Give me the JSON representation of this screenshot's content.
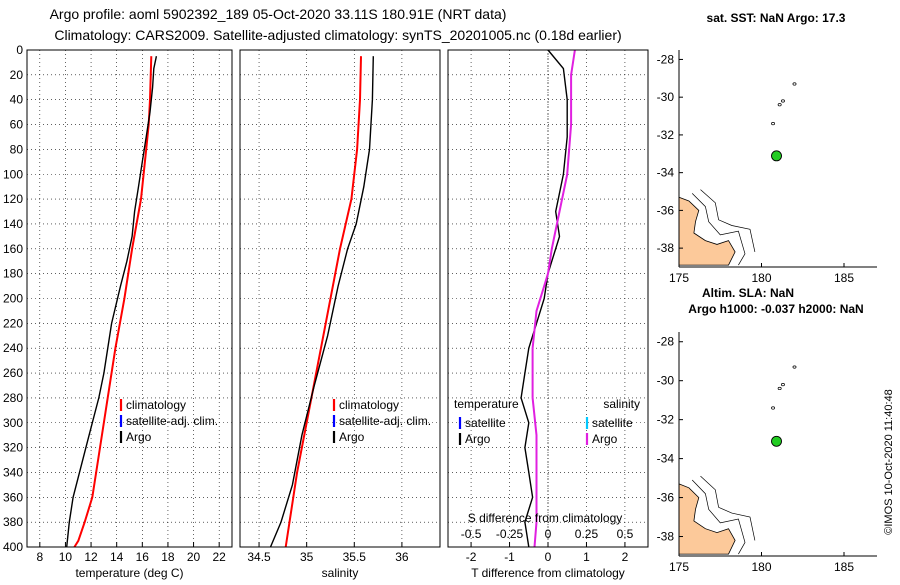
{
  "header": {
    "title_line1": "Argo profile: aoml 5902392_189 05-Oct-2020 33.11S 180.91E (NRT data)",
    "title_line2": "Climatology: CARS2009. Satellite-adjusted climatology: synTS_20201005.nc (0.18d earlier)"
  },
  "colors": {
    "climatology": "#ff0000",
    "satellite": "#0000ff",
    "argo": "#000000",
    "salinity_diff": "#e020e0",
    "salinity_sat": "#00c8ff",
    "land": "#fcc99a"
  },
  "chart_data": [
    {
      "type": "line",
      "id": "temperature",
      "xlabel": "temperature (deg C)",
      "ylabel": "",
      "xlim": [
        7,
        23
      ],
      "ylim": [
        400,
        0
      ],
      "xticks": [
        8,
        10,
        12,
        14,
        16,
        18,
        20,
        22
      ],
      "xtick_labels": [
        "8",
        "10",
        "12",
        "14",
        "16",
        "18",
        "20",
        "22"
      ],
      "yticks": [
        0,
        20,
        40,
        60,
        80,
        100,
        120,
        140,
        160,
        180,
        200,
        220,
        240,
        260,
        280,
        300,
        320,
        340,
        360,
        380,
        400
      ],
      "ytick_labels": [
        "0",
        "20",
        "40",
        "60",
        "80",
        "100",
        "120",
        "140",
        "160",
        "180",
        "200",
        "220",
        "240",
        "260",
        "280",
        "300",
        "320",
        "340",
        "360",
        "380",
        "400"
      ],
      "grid": true,
      "series": [
        {
          "name": "climatology",
          "color": "#ff0000",
          "x": [
            16.7,
            16.6,
            16.5,
            16.3,
            15.9,
            15.2,
            14.6,
            13.9,
            13.3,
            12.7,
            12.1,
            11.5,
            11.0,
            10.7
          ],
          "y": [
            5,
            40,
            60,
            80,
            120,
            160,
            200,
            240,
            280,
            320,
            360,
            380,
            395,
            400
          ]
        },
        {
          "name": "Argo",
          "color": "#000000",
          "x": [
            17.1,
            16.9,
            16.8,
            16.6,
            16.3,
            16.0,
            15.7,
            15.4,
            15.2,
            14.8,
            14.3,
            13.6,
            13.0,
            12.6,
            12.1,
            11.6,
            11.1,
            10.6,
            10.3,
            10.1
          ],
          "y": [
            5,
            15,
            30,
            50,
            70,
            90,
            110,
            130,
            150,
            170,
            190,
            220,
            260,
            280,
            300,
            320,
            340,
            360,
            380,
            400
          ]
        }
      ],
      "legend": {
        "position": "right-middle",
        "entries": [
          "climatology",
          "satellite-adj. clim.",
          "Argo"
        ]
      }
    },
    {
      "type": "line",
      "id": "salinity",
      "xlabel": "salinity",
      "xlim": [
        34.3,
        36.4
      ],
      "ylim": [
        400,
        0
      ],
      "xticks": [
        34.5,
        35,
        35.5,
        36
      ],
      "xtick_labels": [
        "34.5",
        "35",
        "35.5",
        "36"
      ],
      "grid": true,
      "series": [
        {
          "name": "climatology",
          "color": "#ff0000",
          "x": [
            35.57,
            35.56,
            35.53,
            35.47,
            35.35,
            35.2,
            35.05,
            34.9,
            34.78
          ],
          "y": [
            5,
            40,
            80,
            120,
            160,
            220,
            280,
            340,
            400
          ]
        },
        {
          "name": "Argo",
          "color": "#000000",
          "x": [
            35.7,
            35.69,
            35.66,
            35.6,
            35.52,
            35.43,
            35.33,
            35.22,
            35.08,
            34.95,
            34.85,
            34.73,
            34.62
          ],
          "y": [
            5,
            40,
            80,
            110,
            140,
            160,
            190,
            230,
            270,
            310,
            350,
            380,
            400
          ]
        }
      ],
      "legend": {
        "position": "right-middle",
        "entries": [
          "climatology",
          "satellite-adj. clim.",
          "Argo"
        ]
      }
    },
    {
      "type": "line",
      "id": "difference",
      "xlabel": "T difference from climatology",
      "xlabel_top": "S difference from climatology",
      "xlim": [
        -2.6,
        2.6
      ],
      "ylim": [
        400,
        0
      ],
      "xticks": [
        -2,
        -1,
        0,
        1,
        2
      ],
      "xtick_labels": [
        "-2",
        "-1",
        "0",
        "1",
        "2"
      ],
      "s_xticks": [
        -0.5,
        -0.25,
        0,
        0.25,
        0.5
      ],
      "s_xtick_labels": [
        "-0.5",
        "-0.25",
        "0",
        "0.25",
        "0.5"
      ],
      "grid": true,
      "series": [
        {
          "name": "T Argo",
          "color": "#000000",
          "x": [
            0.0,
            0.4,
            0.5,
            0.5,
            0.4,
            0.2,
            0.3,
            0.1,
            0.0,
            -0.1,
            -0.3,
            -0.5,
            -0.6,
            -0.7,
            -0.5,
            -0.6,
            -0.5,
            -0.4,
            -0.6,
            -0.5
          ],
          "y": [
            0,
            15,
            40,
            70,
            100,
            130,
            150,
            170,
            180,
            200,
            220,
            240,
            260,
            280,
            300,
            320,
            340,
            360,
            380,
            400
          ]
        },
        {
          "name": "S Argo",
          "color": "#e020e0",
          "x": [
            0.7,
            0.6,
            0.6,
            0.5,
            0.3,
            0.1,
            0.0,
            -0.1,
            -0.3,
            -0.4,
            -0.4,
            -0.3,
            -0.3,
            -0.3,
            -0.35
          ],
          "y": [
            0,
            20,
            60,
            100,
            130,
            160,
            180,
            190,
            210,
            240,
            280,
            310,
            340,
            380,
            400
          ]
        }
      ],
      "legend": {
        "left_title": "temperature",
        "right_title": "salinity",
        "entries": [
          "satellite",
          "Argo"
        ]
      }
    },
    {
      "type": "scatter",
      "id": "map_sst",
      "title": "sat. SST: NaN Argo: 17.3",
      "xlim": [
        175,
        187
      ],
      "ylim": [
        -39,
        -27.5
      ],
      "xticks": [
        175,
        180,
        185
      ],
      "xtick_labels": [
        "175",
        "180",
        "185"
      ],
      "yticks": [
        -28,
        -30,
        -32,
        -34,
        -36,
        -38
      ],
      "ytick_labels": [
        "-28",
        "-30",
        "-32",
        "-34",
        "-36",
        "-38"
      ],
      "argo_position": {
        "lon": 180.91,
        "lat": -33.11
      }
    },
    {
      "type": "scatter",
      "id": "map_sla",
      "title": "Altim. SLA: NaN",
      "subtitle": "Argo h1000: -0.037 h2000: NaN",
      "xlim": [
        175,
        187
      ],
      "ylim": [
        -39,
        -27.5
      ],
      "xticks": [
        175,
        180,
        185
      ],
      "xtick_labels": [
        "175",
        "180",
        "185"
      ],
      "yticks": [
        -28,
        -30,
        -32,
        -34,
        -36,
        -38
      ],
      "ytick_labels": [
        "-28",
        "-30",
        "-32",
        "-34",
        "-36",
        "-38"
      ],
      "argo_position": {
        "lon": 180.91,
        "lat": -33.11
      }
    }
  ],
  "footer": {
    "stamp": "©IMOS 10-Oct-2020 11:40:48"
  }
}
